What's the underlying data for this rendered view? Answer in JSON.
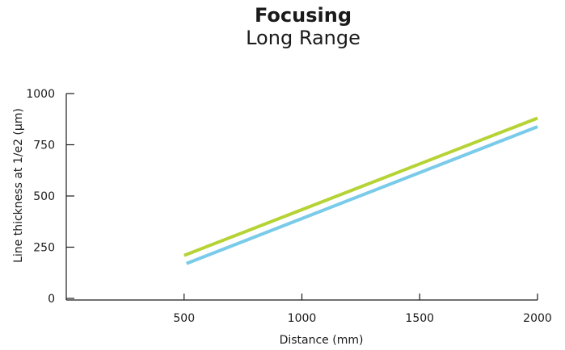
{
  "chart_data": {
    "type": "line",
    "title": "Focusing",
    "subtitle": "Long Range",
    "xlabel": "Distance (mm)",
    "ylabel": "Line thickness at 1/e2 (µm)",
    "xlim": [
      0,
      2000
    ],
    "ylim": [
      0,
      1000
    ],
    "x_ticks": [
      500,
      1000,
      1500,
      2000
    ],
    "y_ticks": [
      0,
      250,
      500,
      750,
      1000
    ],
    "grid": false,
    "series": [
      {
        "color": "#b5d334",
        "x": [
          500,
          2000
        ],
        "values": [
          210,
          880
        ]
      },
      {
        "color": "#79cbe9",
        "x": [
          510,
          2000
        ],
        "values": [
          170,
          838
        ]
      }
    ]
  }
}
